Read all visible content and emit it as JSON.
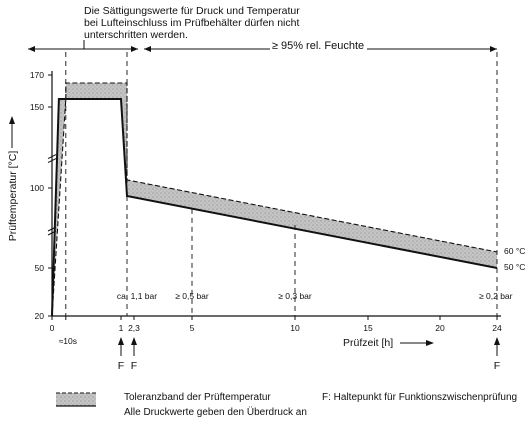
{
  "chart_data": {
    "type": "line",
    "title": "",
    "note": [
      "Die Sättigungswerte für Druck und Temperatur",
      "bei Lufteinschluss im Prüfbehälter dürfen nicht",
      "unterschritten werden."
    ],
    "humidity_label": "≥ 95% rel. Feuchte",
    "xlabel": "Prüfzeit [h]",
    "ylabel": "Prüftemperatur [°C]",
    "xlim": [
      0,
      24
    ],
    "ylim": [
      20,
      170
    ],
    "x_ticks": [
      {
        "value": 0,
        "label": "0"
      },
      {
        "value": 1,
        "label": "1"
      },
      {
        "value": 2.3,
        "label": "2,3"
      },
      {
        "value": 5,
        "label": "5"
      },
      {
        "value": 10,
        "label": "10"
      },
      {
        "value": 15,
        "label": "15"
      },
      {
        "value": 20,
        "label": "20"
      },
      {
        "value": 24,
        "label": "24"
      }
    ],
    "x_sub_label": "≈10s",
    "y_ticks": [
      {
        "value": 20,
        "label": "20"
      },
      {
        "value": 50,
        "label": "50"
      },
      {
        "value": 100,
        "label": "100"
      },
      {
        "value": 150,
        "label": "150"
      },
      {
        "value": 170,
        "label": "170"
      }
    ],
    "series": [
      {
        "name": "60 °C",
        "x": [
          0,
          0.2,
          0.2,
          1.0,
          1.6,
          1.6,
          24
        ],
        "y": [
          20,
          155,
          165,
          165,
          165,
          105,
          60
        ]
      },
      {
        "name": "50 °C",
        "x": [
          0,
          0.1,
          1.0,
          1.6,
          24
        ],
        "y": [
          20,
          155,
          155,
          95,
          50
        ]
      }
    ],
    "band_label": "Toleranzband der Prüftemperatur",
    "pressure_markers": [
      {
        "x": 1.6,
        "label": "ca. 1,1 bar"
      },
      {
        "x": 5,
        "label": "≥ 0,5 bar"
      },
      {
        "x": 10,
        "label": "≥ 0,3 bar"
      },
      {
        "x": 24,
        "label": "≥ 0,2 bar"
      }
    ],
    "hold_points": [
      {
        "x": 1,
        "label": "F"
      },
      {
        "x": 2.3,
        "label": "F"
      },
      {
        "x": 24,
        "label": "F"
      }
    ],
    "legend": {
      "band": "Toleranzband der Prüftemperatur",
      "pressure_note": "Alle Druckwerte geben den Überdruck an",
      "hold_point": "F: Haltepunkt für Funktionszwischenprüfung"
    }
  },
  "colors": {
    "band": "#b9b9b9",
    "line": "#111111"
  }
}
